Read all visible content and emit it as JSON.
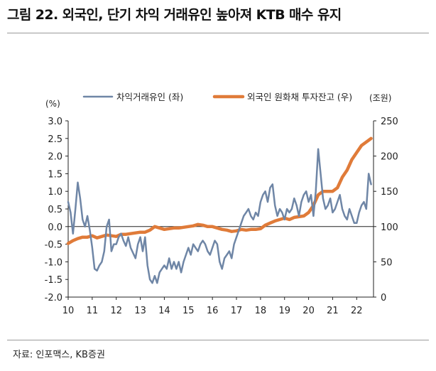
{
  "figure": {
    "title": "그림 22. 외국인, 단기 차익 거래유인 높아져 KTB 매수 유지",
    "source": "자료: 인포맥스, KB증권"
  },
  "chart_data": {
    "type": "line",
    "left_unit": "(%)",
    "right_unit": "(조원)",
    "left_axis": {
      "ylim": [
        -2.0,
        3.0
      ],
      "ticks": [
        "3.0",
        "2.5",
        "2.0",
        "1.5",
        "1.0",
        "0.5",
        "0.0",
        "-0.5",
        "-1.0",
        "-1.5",
        "-2.0"
      ]
    },
    "right_axis": {
      "ylim": [
        0,
        250
      ],
      "ticks": [
        "250",
        "200",
        "150",
        "100",
        "50",
        "0"
      ]
    },
    "x_axis": {
      "ticks": [
        "10",
        "11",
        "12",
        "13",
        "14",
        "15",
        "16",
        "17",
        "18",
        "19",
        "20",
        "21",
        "22"
      ],
      "xlim": [
        2010,
        2022.7
      ]
    },
    "grid": false,
    "legend_position": "top",
    "series": [
      {
        "name": "차익거래유인 (좌)",
        "axis": "left",
        "color": "#6f86a6",
        "x": [
          2010.0,
          2010.1,
          2010.2,
          2010.3,
          2010.4,
          2010.5,
          2010.6,
          2010.7,
          2010.8,
          2010.9,
          2011.0,
          2011.1,
          2011.2,
          2011.3,
          2011.4,
          2011.5,
          2011.6,
          2011.7,
          2011.8,
          2011.9,
          2012.0,
          2012.1,
          2012.2,
          2012.3,
          2012.4,
          2012.5,
          2012.6,
          2012.7,
          2012.8,
          2012.9,
          2013.0,
          2013.1,
          2013.2,
          2013.3,
          2013.4,
          2013.5,
          2013.6,
          2013.7,
          2013.8,
          2013.9,
          2014.0,
          2014.1,
          2014.2,
          2014.3,
          2014.4,
          2014.5,
          2014.6,
          2014.7,
          2014.8,
          2014.9,
          2015.0,
          2015.1,
          2015.2,
          2015.3,
          2015.4,
          2015.5,
          2015.6,
          2015.7,
          2015.8,
          2015.9,
          2016.0,
          2016.1,
          2016.2,
          2016.3,
          2016.4,
          2016.5,
          2016.6,
          2016.7,
          2016.8,
          2016.9,
          2017.0,
          2017.1,
          2017.2,
          2017.3,
          2017.4,
          2017.5,
          2017.6,
          2017.7,
          2017.8,
          2017.9,
          2018.0,
          2018.1,
          2018.2,
          2018.3,
          2018.4,
          2018.5,
          2018.6,
          2018.7,
          2018.8,
          2018.9,
          2019.0,
          2019.1,
          2019.2,
          2019.3,
          2019.4,
          2019.5,
          2019.6,
          2019.7,
          2019.8,
          2019.9,
          2020.0,
          2020.1,
          2020.2,
          2020.3,
          2020.4,
          2020.5,
          2020.6,
          2020.7,
          2020.8,
          2020.9,
          2021.0,
          2021.1,
          2021.2,
          2021.3,
          2021.4,
          2021.5,
          2021.6,
          2021.7,
          2021.8,
          2021.9,
          2022.0,
          2022.1,
          2022.2,
          2022.3,
          2022.4,
          2022.5,
          2022.6
        ],
        "values": [
          0.7,
          0.4,
          -0.2,
          0.5,
          1.25,
          0.8,
          0.2,
          0.0,
          0.3,
          -0.1,
          -0.6,
          -1.2,
          -1.25,
          -1.1,
          -1.0,
          -0.7,
          0.0,
          0.2,
          -0.7,
          -0.5,
          -0.5,
          -0.3,
          -0.2,
          -0.4,
          -0.55,
          -0.3,
          -0.6,
          -0.75,
          -0.9,
          -0.5,
          -0.3,
          -0.7,
          -0.3,
          -1.1,
          -1.5,
          -1.6,
          -1.4,
          -1.6,
          -1.3,
          -1.2,
          -1.1,
          -1.2,
          -0.9,
          -1.2,
          -1.0,
          -1.2,
          -1.0,
          -1.3,
          -1.0,
          -0.8,
          -0.6,
          -0.8,
          -0.5,
          -0.6,
          -0.7,
          -0.5,
          -0.4,
          -0.5,
          -0.7,
          -0.8,
          -0.6,
          -0.4,
          -0.5,
          -1.0,
          -1.2,
          -0.9,
          -0.8,
          -0.7,
          -0.9,
          -0.5,
          -0.3,
          -0.1,
          0.1,
          0.3,
          0.4,
          0.5,
          0.3,
          0.2,
          0.4,
          0.3,
          0.7,
          0.9,
          1.0,
          0.7,
          1.1,
          1.2,
          0.6,
          0.3,
          0.5,
          0.4,
          0.2,
          0.5,
          0.4,
          0.5,
          0.8,
          0.6,
          0.3,
          0.7,
          0.9,
          1.0,
          0.7,
          0.9,
          0.3,
          1.0,
          2.2,
          1.5,
          0.8,
          0.5,
          0.6,
          0.8,
          0.4,
          0.5,
          0.7,
          0.9,
          0.5,
          0.3,
          0.2,
          0.5,
          0.3,
          0.1,
          0.1,
          0.4,
          0.6,
          0.7,
          0.5,
          1.5,
          1.2
        ]
      },
      {
        "name": "외국인 원화채 투자잔고 (우)",
        "axis": "right",
        "color": "#e07b39",
        "x": [
          2010.0,
          2010.2,
          2010.4,
          2010.6,
          2010.8,
          2011.0,
          2011.2,
          2011.4,
          2011.6,
          2011.8,
          2012.0,
          2012.2,
          2012.4,
          2012.6,
          2012.8,
          2013.0,
          2013.2,
          2013.4,
          2013.6,
          2013.8,
          2014.0,
          2014.2,
          2014.4,
          2014.6,
          2014.8,
          2015.0,
          2015.2,
          2015.4,
          2015.6,
          2015.8,
          2016.0,
          2016.2,
          2016.4,
          2016.6,
          2016.8,
          2017.0,
          2017.2,
          2017.4,
          2017.6,
          2017.8,
          2018.0,
          2018.2,
          2018.4,
          2018.6,
          2018.8,
          2019.0,
          2019.2,
          2019.4,
          2019.6,
          2019.8,
          2020.0,
          2020.2,
          2020.4,
          2020.6,
          2020.8,
          2021.0,
          2021.2,
          2021.4,
          2021.6,
          2021.8,
          2022.0,
          2022.2,
          2022.4,
          2022.6
        ],
        "values": [
          76,
          80,
          83,
          85,
          85,
          87,
          84,
          86,
          88,
          87,
          86,
          89,
          89,
          90,
          91,
          92,
          92,
          95,
          100,
          98,
          96,
          97,
          98,
          98,
          99,
          100,
          101,
          103,
          102,
          100,
          100,
          98,
          96,
          95,
          93,
          94,
          96,
          95,
          96,
          96,
          97,
          102,
          105,
          108,
          110,
          112,
          110,
          113,
          114,
          115,
          120,
          130,
          145,
          150,
          150,
          150,
          155,
          170,
          180,
          195,
          205,
          215,
          220,
          225
        ]
      }
    ]
  }
}
